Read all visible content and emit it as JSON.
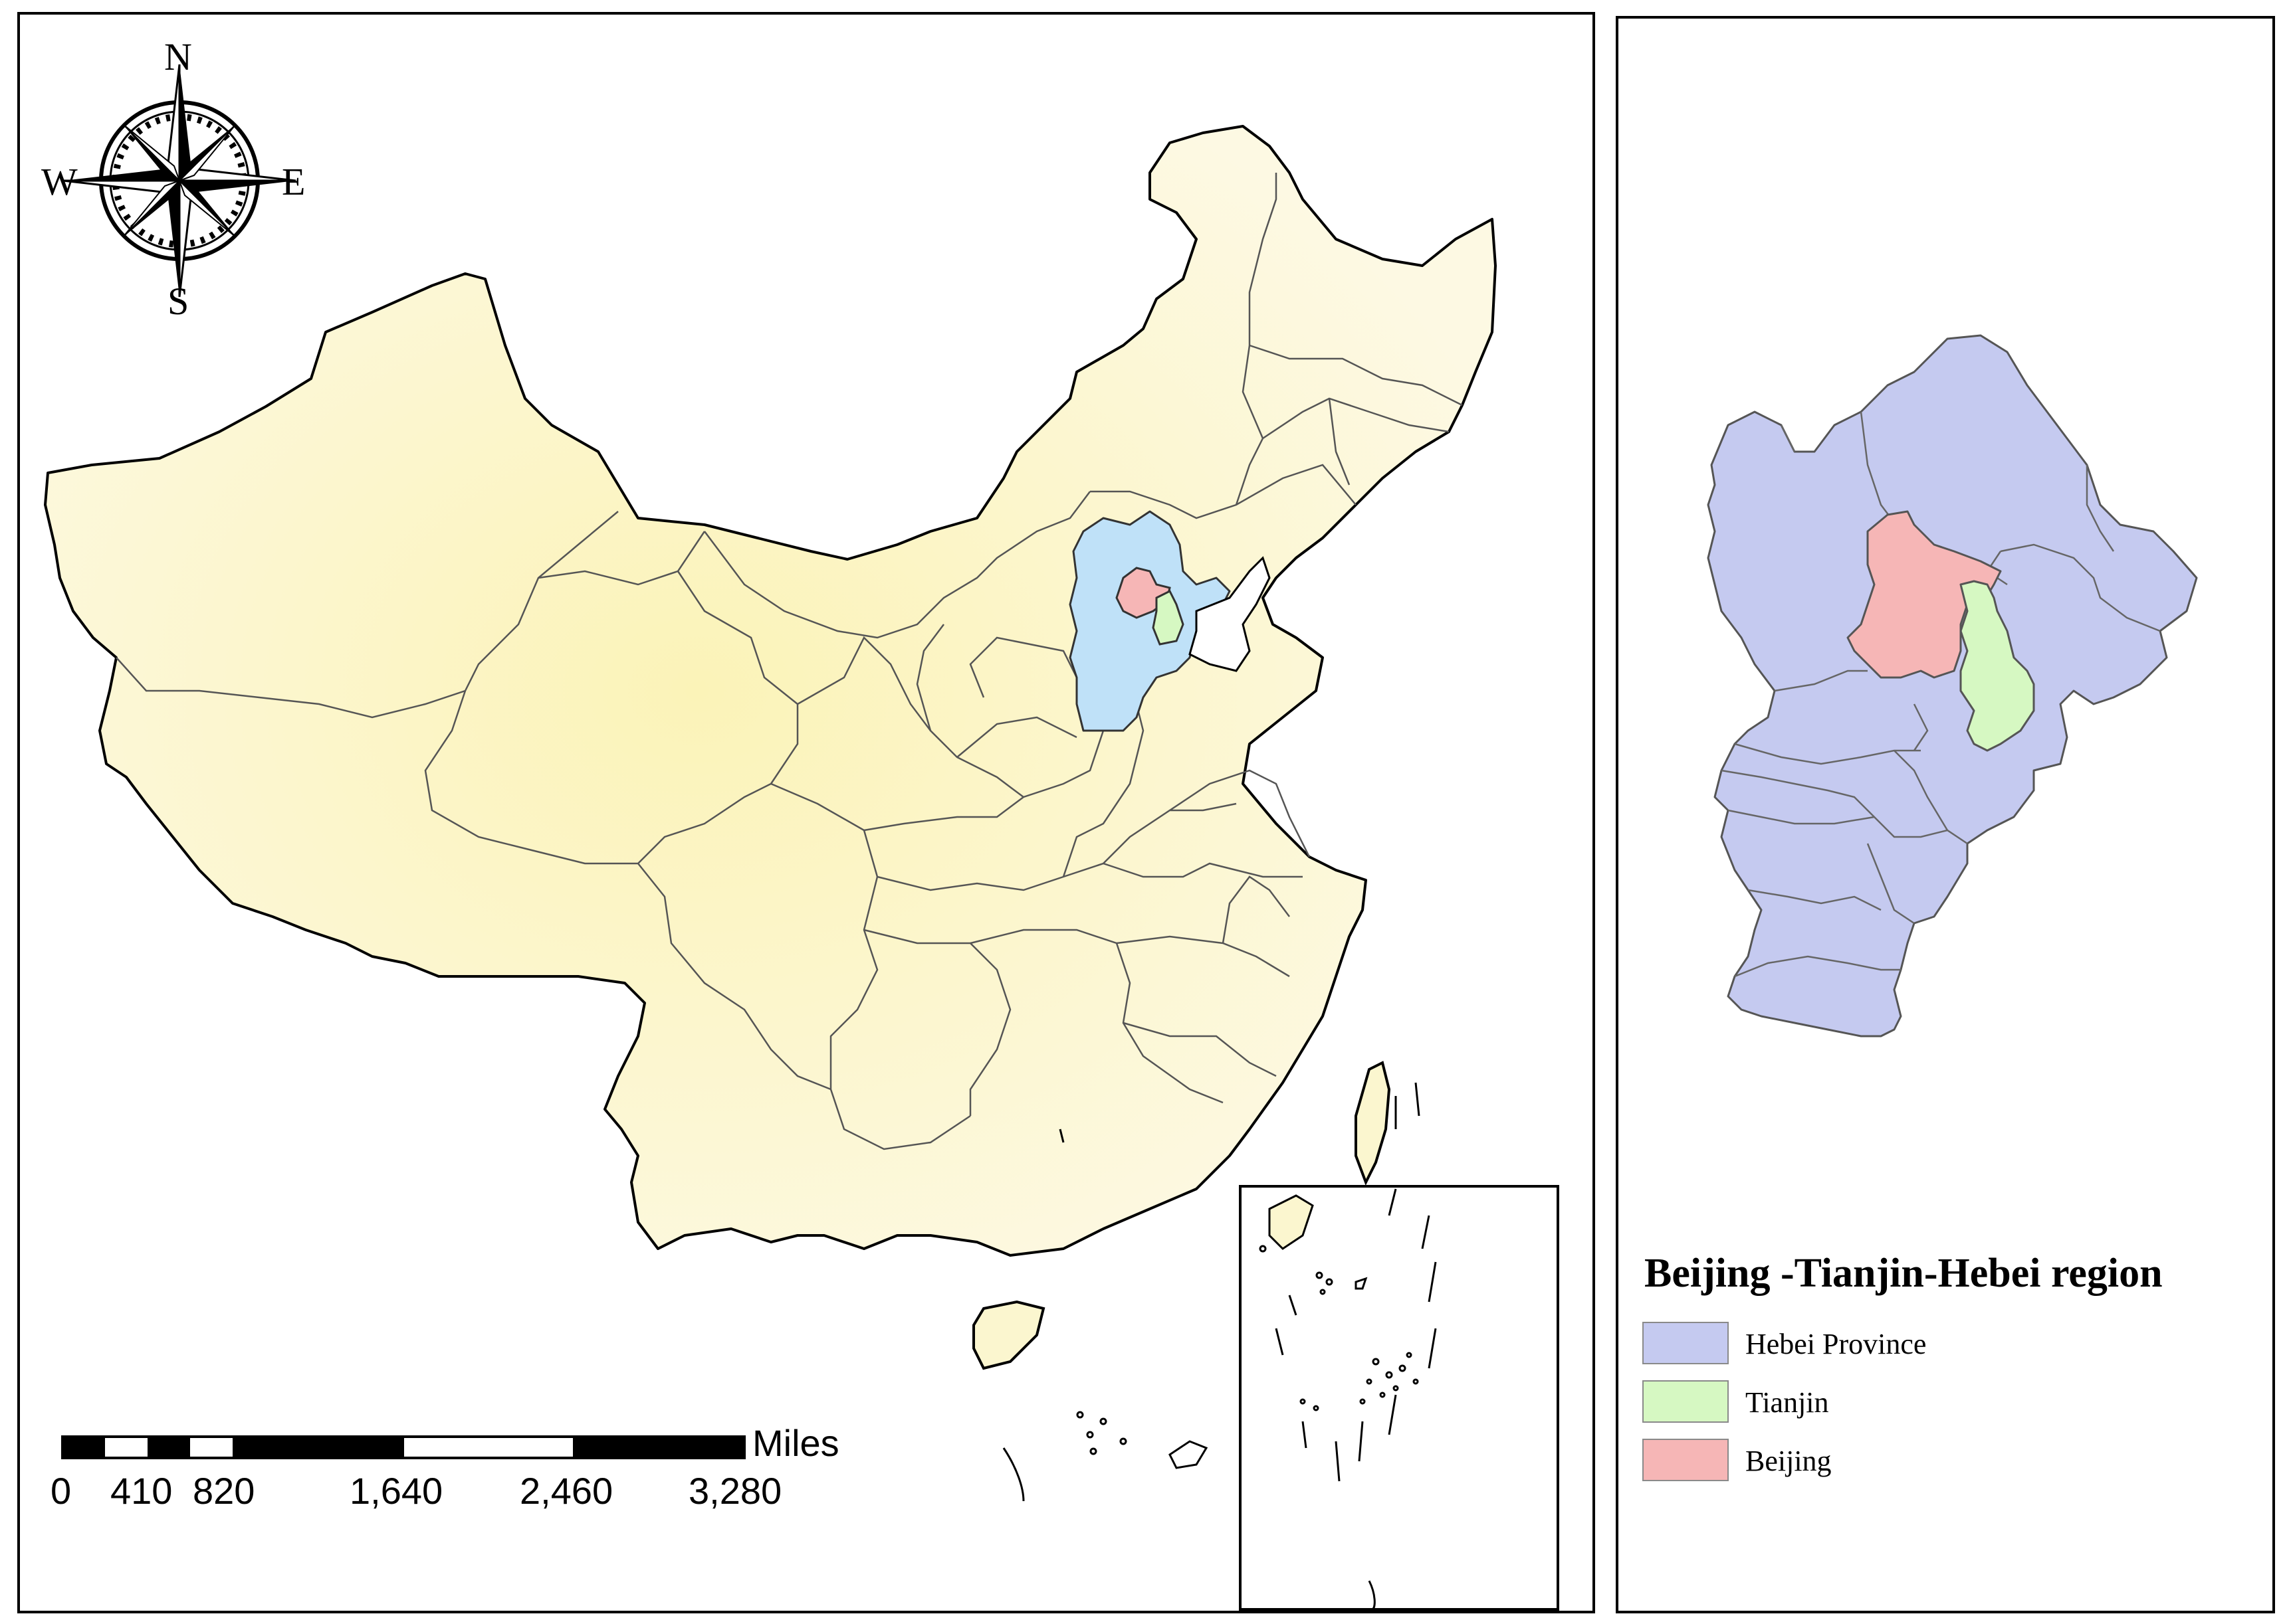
{
  "compass": {
    "north": "N",
    "south": "S",
    "east": "E",
    "west": "W"
  },
  "scale_bar": {
    "unit": "Miles",
    "ticks": [
      "0",
      "410",
      "820",
      "1,640",
      "2,460",
      "3,280"
    ]
  },
  "legend": {
    "title": "Beijing -Tianjin-Hebei region",
    "items": [
      {
        "label": "Hebei Province",
        "color": "#c5caf0"
      },
      {
        "label": "Tianjin",
        "color": "#d6f8c2"
      },
      {
        "label": "Beijing",
        "color": "#f6b6b6"
      }
    ]
  },
  "colors": {
    "china_fill": "#fbf6cf",
    "hebei_main_map": "#bfe1f8",
    "outline": "#000000",
    "province_border": "#555555"
  }
}
